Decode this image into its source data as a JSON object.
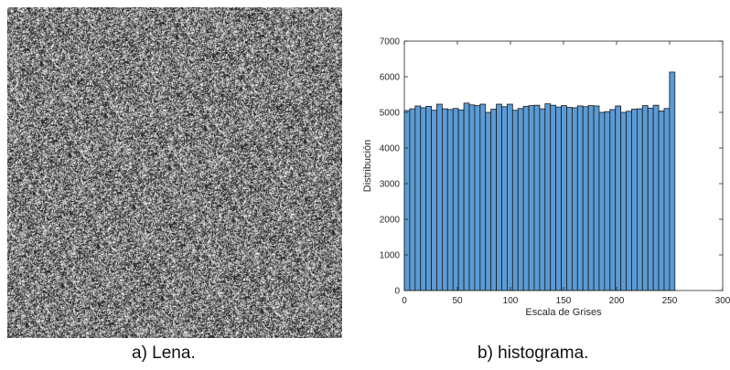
{
  "captions": {
    "left": "a) Lena.",
    "right": "b) histograma."
  },
  "image_panel": {
    "content": "encrypted noise image"
  },
  "chart_data": {
    "type": "bar",
    "title": "",
    "xlabel": "Escala de Grises",
    "ylabel": "Distribución",
    "xlim": [
      0,
      300
    ],
    "ylim": [
      0,
      7000
    ],
    "xticks": [
      0,
      50,
      100,
      150,
      200,
      250,
      300
    ],
    "yticks": [
      0,
      1000,
      2000,
      3000,
      4000,
      5000,
      6000,
      7000
    ],
    "grid": false,
    "bar_color": "#5b9bd5",
    "bar_edge_color": "#1a1a1a",
    "bin_width": 5.1,
    "bin_start": 0,
    "values": [
      5050,
      5100,
      5180,
      5130,
      5170,
      5060,
      5230,
      5100,
      5080,
      5110,
      5070,
      5260,
      5210,
      5190,
      5230,
      5000,
      5090,
      5230,
      5160,
      5230,
      5060,
      5110,
      5170,
      5190,
      5200,
      5100,
      5240,
      5200,
      5150,
      5190,
      5140,
      5130,
      5180,
      5160,
      5190,
      5180,
      5000,
      5020,
      5080,
      5180,
      5000,
      5030,
      5090,
      5100,
      5190,
      5120,
      5200,
      5040,
      5110,
      6130
    ]
  }
}
